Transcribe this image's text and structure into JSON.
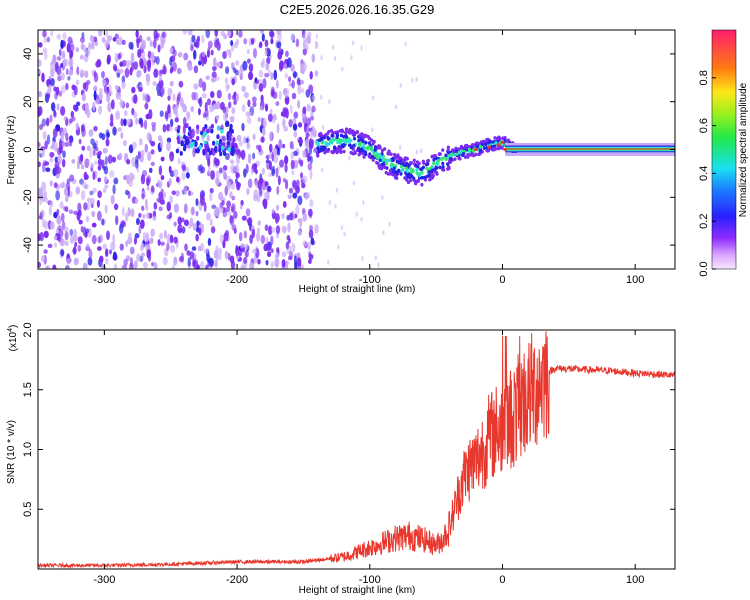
{
  "title": "C2E5.2026.026.16.35.G29",
  "chart_data": [
    {
      "type": "heatmap",
      "xlabel": "Height of straight line (km)",
      "ylabel": "Frequency (Hz)",
      "xlim": [
        -350,
        130
      ],
      "ylim": [
        -50,
        50
      ],
      "xticks": [
        -300,
        -200,
        -100,
        0,
        100
      ],
      "xtick_labels": [
        "-300",
        "-200",
        "-100",
        "0",
        "100"
      ],
      "yticks": [
        -40,
        -20,
        0,
        20,
        40
      ],
      "ytick_labels": [
        "-40",
        "-20",
        "0",
        "20",
        "40"
      ],
      "colorbar": {
        "label": "Normalized spectral amplitude",
        "range": [
          0,
          1
        ],
        "ticks": [
          0.0,
          0.2,
          0.4,
          0.6,
          0.8
        ],
        "tick_labels": [
          "0.0",
          "0.2",
          "0.4",
          "0.6",
          "0.8"
        ]
      },
      "ridge": {
        "x": [
          -140,
          -130,
          -120,
          -110,
          -100,
          -90,
          -80,
          -70,
          -60,
          -50,
          -40,
          -30,
          -20,
          -10,
          0,
          10,
          130
        ],
        "y": [
          2,
          3,
          4,
          3,
          0,
          -4,
          -7,
          -9,
          -10,
          -6,
          -3,
          -1,
          0,
          2,
          3,
          0,
          0
        ]
      }
    },
    {
      "type": "line",
      "xlabel": "Height of straight line (km)",
      "ylabel": "SNR (10 * v/v)",
      "scale_label_base": "(x10",
      "scale_label_exp": "4",
      "scale_label_close": ")",
      "xlim": [
        -350,
        130
      ],
      "ylim": [
        0,
        2.0
      ],
      "xticks": [
        -300,
        -200,
        -100,
        0,
        100
      ],
      "xtick_labels": [
        "-300",
        "-200",
        "-100",
        "0",
        "100"
      ],
      "yticks": [
        0.5,
        1.0,
        1.5,
        2.0
      ],
      "ytick_labels": [
        "0.5",
        "1.0",
        "1.5",
        "2.0"
      ],
      "color": "#e8382e",
      "series": [
        {
          "name": "SNR",
          "x": [
            -350,
            -300,
            -250,
            -200,
            -150,
            -120,
            -110,
            -100,
            -90,
            -80,
            -70,
            -60,
            -50,
            -45,
            -40,
            -35,
            -30,
            -25,
            -20,
            -15,
            -10,
            -5,
            0,
            5,
            10,
            15,
            20,
            25,
            30,
            35,
            40,
            60,
            80,
            100,
            130
          ],
          "y": [
            0.03,
            0.03,
            0.04,
            0.06,
            0.06,
            0.1,
            0.14,
            0.18,
            0.22,
            0.26,
            0.28,
            0.25,
            0.2,
            0.25,
            0.35,
            0.55,
            0.75,
            0.85,
            0.9,
            1.0,
            1.1,
            1.15,
            1.2,
            1.25,
            1.3,
            1.4,
            1.45,
            1.52,
            1.6,
            1.65,
            1.68,
            1.67,
            1.66,
            1.64,
            1.62
          ]
        }
      ]
    }
  ],
  "colors": {
    "purple": "#7c2cf0",
    "lightPurple": "#c8a8f8",
    "blue": "#2a22e6",
    "cyan": "#2ee0d8",
    "green": "#38e86a",
    "red": "#e23a2c"
  }
}
